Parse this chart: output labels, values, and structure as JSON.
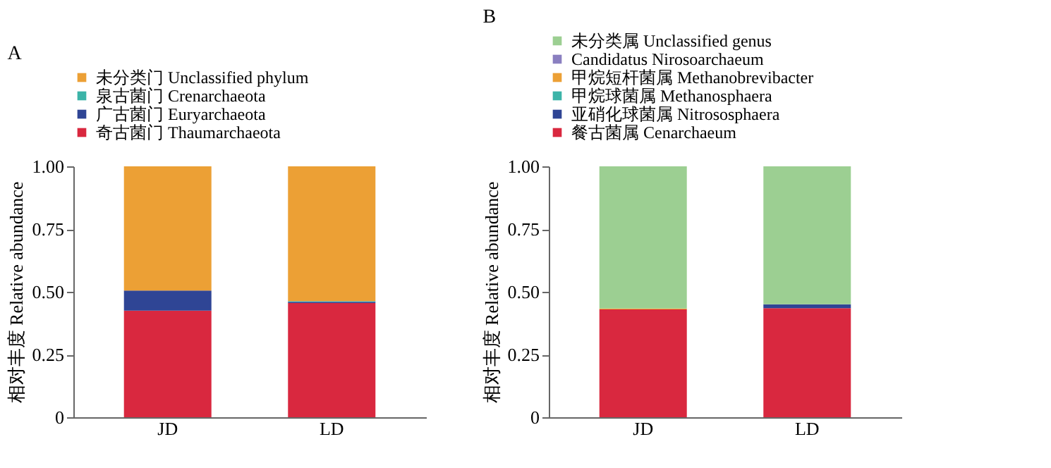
{
  "chart_data": [
    {
      "type": "bar",
      "title": "A",
      "stacked": true,
      "categories": [
        "JD",
        "LD"
      ],
      "ylabel": "相对丰度  Relative abundance",
      "ylim": [
        0,
        1
      ],
      "yticks": [
        {
          "value": 0,
          "label": "0"
        },
        {
          "value": 0.25,
          "label": "0.25"
        },
        {
          "value": 0.5,
          "label": "0.50"
        },
        {
          "value": 0.75,
          "label": "0.75"
        },
        {
          "value": 1,
          "label": "1.00"
        }
      ],
      "grid": false,
      "legend": "top",
      "series": [
        {
          "name": "奇古菌门 Thaumarchaeota",
          "color": "#d9283f",
          "values": [
            0.425,
            0.455
          ]
        },
        {
          "name": "广古菌门 Euryarchaeota",
          "color": "#2f4595",
          "values": [
            0.08,
            0.005
          ]
        },
        {
          "name": "泉古菌门  Crenarchaeota",
          "color": "#3cb4a8",
          "values": [
            0.0,
            0.003
          ]
        },
        {
          "name": "未分类门 Unclassified phylum",
          "color": "#eca035",
          "values": [
            0.495,
            0.537
          ]
        }
      ]
    },
    {
      "type": "bar",
      "title": "B",
      "stacked": true,
      "categories": [
        "JD",
        "LD"
      ],
      "ylabel": "相对丰度  Relative abundance",
      "ylim": [
        0,
        1
      ],
      "yticks": [
        {
          "value": 0,
          "label": "0"
        },
        {
          "value": 0.25,
          "label": "0.25"
        },
        {
          "value": 0.5,
          "label": "0.50"
        },
        {
          "value": 0.75,
          "label": "0.75"
        },
        {
          "value": 1,
          "label": "1.00"
        }
      ],
      "grid": false,
      "legend": "top",
      "series": [
        {
          "name": "餐古菌属 Cenarchaeum",
          "color": "#d9283f",
          "values": [
            0.43,
            0.435
          ]
        },
        {
          "name": "亚硝化球菌属 Nitrososphaera",
          "color": "#2f4595",
          "values": [
            0.0,
            0.015
          ]
        },
        {
          "name": "甲烷球菌属 Methanosphaera",
          "color": "#3cb4a8",
          "values": [
            0.0,
            0.0
          ]
        },
        {
          "name": "甲烷短杆菌属 Methanobrevibacter",
          "color": "#eca035",
          "values": [
            0.003,
            0.0
          ]
        },
        {
          "name": "Candidatus Nirosoarchaeum",
          "color": "#8a7fc0",
          "values": [
            0.0,
            0.0
          ]
        },
        {
          "name": "未分类属 Unclassified genus",
          "color": "#9ccf92",
          "values": [
            0.567,
            0.55
          ]
        }
      ]
    }
  ]
}
